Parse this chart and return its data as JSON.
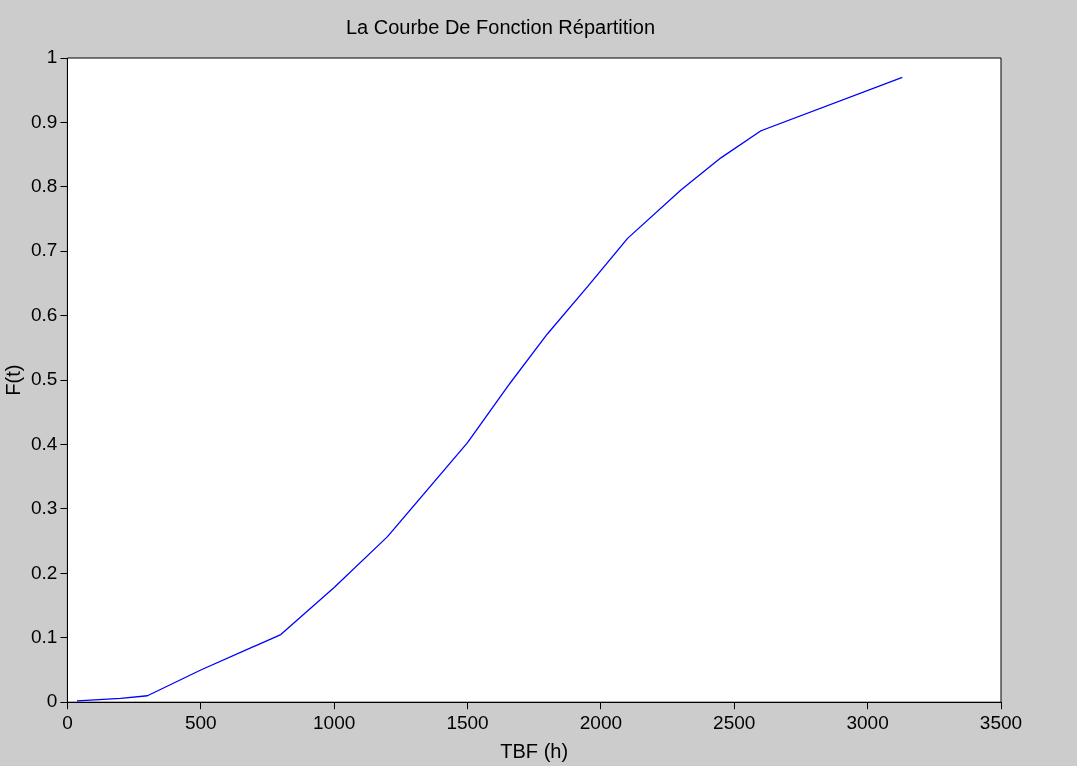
{
  "chart_data": {
    "type": "line",
    "title": "La Courbe De Fonction Répartition",
    "xlabel": "TBF (h)",
    "ylabel": "F(t)",
    "x": [
      36,
      200,
      300,
      500,
      800,
      1000,
      1200,
      1500,
      1650,
      1800,
      1950,
      2100,
      2300,
      2450,
      2600,
      3130
    ],
    "series": [
      {
        "color": "#0000ff",
        "values": [
          0.002,
          0.006,
          0.01,
          0.05,
          0.105,
          0.178,
          0.257,
          0.403,
          0.49,
          0.572,
          0.645,
          0.72,
          0.795,
          0.845,
          0.887,
          0.97
        ]
      }
    ],
    "xlim": [
      0,
      3500
    ],
    "xticks": [
      0,
      500,
      1000,
      1500,
      2000,
      2500,
      3000,
      3500
    ],
    "ylim": [
      0,
      1
    ],
    "yticks": [
      0,
      0.1,
      0.2,
      0.3,
      0.4,
      0.5,
      0.6,
      0.7,
      0.8,
      0.9,
      1
    ],
    "grid": false,
    "legend": false,
    "marker": "none",
    "line_style": "solid"
  }
}
